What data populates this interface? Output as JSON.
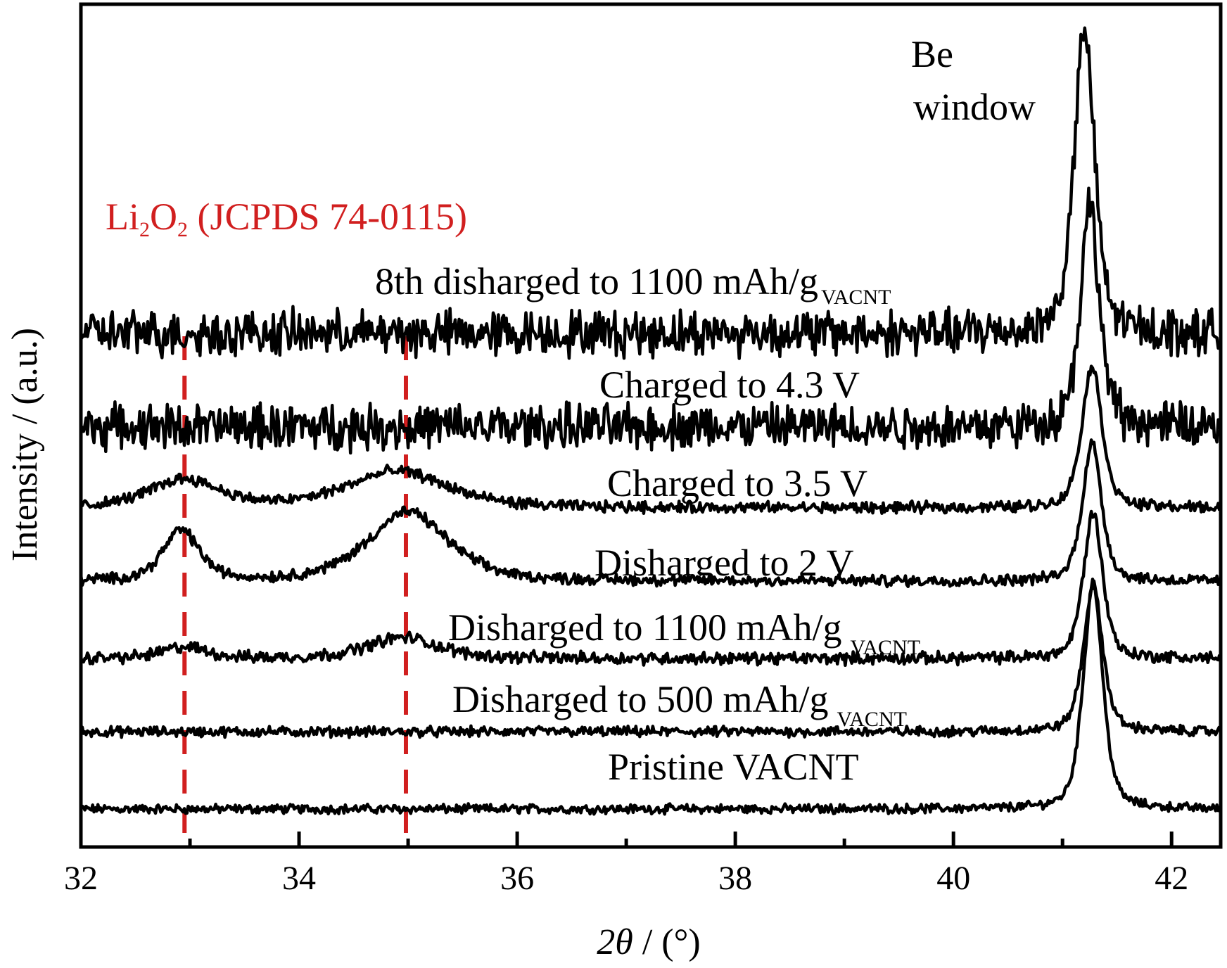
{
  "chart_data": {
    "type": "line",
    "title": "",
    "xlabel": "2θ / (°)",
    "xlabel_parts": {
      "var": "2θ",
      "unit": " / (°)"
    },
    "ylabel": "Intensity / (a.u.)",
    "xlim": [
      32,
      42.45
    ],
    "x_ticks": [
      32,
      34,
      36,
      38,
      40,
      42
    ],
    "x_tick_labels": [
      "32",
      "34",
      "36",
      "38",
      "40",
      "42"
    ],
    "x_minor_ticks": [
      33,
      35,
      37,
      39,
      41
    ],
    "y_ticks": [],
    "grid": false,
    "line_color": "#000000",
    "reference": {
      "label_main": "Li₂O₂ (JCPDS 74-0115)",
      "label_parts": [
        "Li",
        "2",
        "O",
        "2",
        " (JCPDS 74-0115)"
      ],
      "color": "#d11f1f",
      "positions": [
        32.95,
        34.98
      ]
    },
    "peak_annotation": {
      "lines": [
        "Be",
        "window"
      ],
      "x": 41.2
    },
    "series": [
      {
        "name": "Pristine VACNT",
        "label_main": "Pristine VACNT",
        "label_sub": "",
        "baseline": 0.0,
        "noise": 0.45,
        "peaks": [
          {
            "center": 41.28,
            "height": 28.0,
            "width": 0.095
          }
        ]
      },
      {
        "name": "Disharged to 500 mAh/g VACNT",
        "label_main": "Disharged to 500 mAh/g",
        "label_sub": "VACNT",
        "baseline": 9.5,
        "noise": 0.5,
        "peaks": [
          {
            "center": 41.28,
            "height": 18.0,
            "width": 0.095
          }
        ]
      },
      {
        "name": "Disharged to 1100 mAh/g VACNT",
        "label_main": "Disharged to 1100 mAh/g",
        "label_sub": "VACNT",
        "baseline": 18.5,
        "noise": 0.6,
        "peaks": [
          {
            "center": 32.95,
            "height": 1.4,
            "width": 0.22
          },
          {
            "center": 34.95,
            "height": 2.6,
            "width": 0.35
          },
          {
            "center": 41.28,
            "height": 18.0,
            "width": 0.095
          }
        ]
      },
      {
        "name": "Disharged to 2 V",
        "label_main": "Disharged to 2 V",
        "label_sub": "",
        "baseline": 28.0,
        "noise": 0.55,
        "peaks": [
          {
            "center": 32.92,
            "height": 6.2,
            "width": 0.18
          },
          {
            "center": 35.0,
            "height": 8.5,
            "width": 0.4
          },
          {
            "center": 41.27,
            "height": 17.0,
            "width": 0.095
          }
        ]
      },
      {
        "name": "Charged to 3.5 V",
        "label_main": "Charged to 3.5 V",
        "label_sub": "",
        "baseline": 37.0,
        "noise": 0.55,
        "peaks": [
          {
            "center": 32.95,
            "height": 3.5,
            "width": 0.35
          },
          {
            "center": 34.9,
            "height": 4.5,
            "width": 0.5
          },
          {
            "center": 41.27,
            "height": 17.5,
            "width": 0.1
          }
        ]
      },
      {
        "name": "Charged to 4.3 V",
        "label_main": "Charged to 4.3 V",
        "label_sub": "",
        "baseline": 47.0,
        "noise": 2.2,
        "peaks": [
          {
            "center": 41.25,
            "height": 27.0,
            "width": 0.095
          }
        ]
      },
      {
        "name": "8th disharged to 1100 mAh/g VACNT",
        "label_main": "8th disharged to 1100 mAh/g",
        "label_sub": "VACNT",
        "baseline": 58.5,
        "noise": 2.2,
        "peaks": [
          {
            "center": 41.2,
            "height": 37.5,
            "width": 0.1
          }
        ]
      }
    ]
  }
}
